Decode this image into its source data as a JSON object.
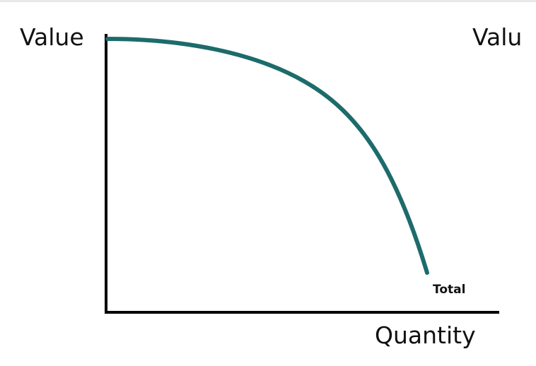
{
  "diagram": {
    "y_axis_label": "Value",
    "x_axis_label": "Quantity",
    "curve_end_label": "Total",
    "cut_off_label": "Valu",
    "curve_color": "#1d6b6b",
    "axis_color": "#000000"
  }
}
